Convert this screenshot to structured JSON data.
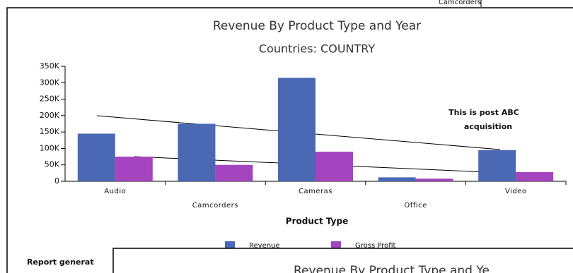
{
  "top_window": {
    "text": "Camcorders"
  },
  "chart_data": {
    "type": "bar",
    "title": "Revenue By Product Type and Year",
    "subtitle": "Countries: COUNTRY",
    "x_label": "Product Type",
    "categories": [
      "Audio",
      "Camcorders",
      "Cameras",
      "Office",
      "Video"
    ],
    "series": [
      {
        "name": "Revenue",
        "color": "#4a68b4",
        "values": [
          145000,
          175000,
          315000,
          12000,
          95000
        ]
      },
      {
        "name": "Gross Profit",
        "color": "#a445bf",
        "values": [
          75000,
          50000,
          90000,
          8000,
          28000
        ]
      }
    ],
    "ylim": [
      0,
      350000
    ],
    "yticks": [
      0,
      {
        "value": 50000,
        "label": "50K"
      },
      {
        "value": 100000,
        "label": "100K"
      },
      {
        "value": 150000,
        "label": "150K"
      },
      {
        "value": 200000,
        "label": "200K"
      },
      {
        "value": 250000,
        "label": "250K"
      },
      {
        "value": 300000,
        "label": "300K"
      },
      {
        "value": 350000,
        "label": "350K"
      }
    ],
    "annotation": [
      "This is post ABC",
      "acquisition"
    ],
    "legend": "bottom"
  },
  "footer": {
    "text": "Report generat"
  },
  "overlay_window": {
    "title": "Revenue By Product Type and Ye"
  }
}
